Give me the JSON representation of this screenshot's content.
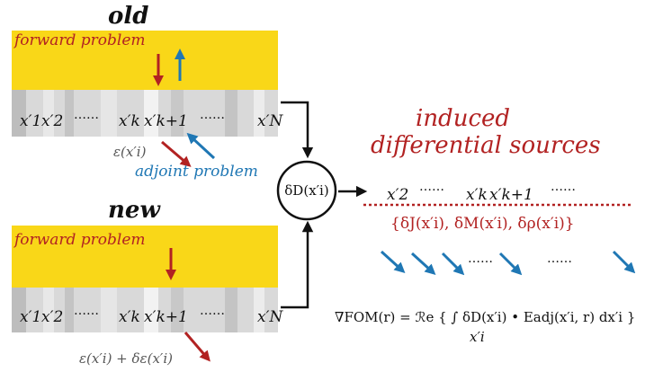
{
  "old_panel": {
    "title": "old",
    "forward_label": "forward  problem",
    "coords": [
      "x′1",
      "x′2",
      "x′k",
      "x′k+1",
      "x′N"
    ],
    "ellipsis_1": "……",
    "ellipsis_2": "……",
    "epsilon_label": "ε(x′i)",
    "adjoint_label": "adjoint problem"
  },
  "new_panel": {
    "title": "new",
    "forward_label": "forward  problem",
    "coords": [
      "x′1",
      "x′2",
      "x′k",
      "x′k+1",
      "x′N"
    ],
    "ellipsis_1": "……",
    "ellipsis_2": "……",
    "epsilon_label": "ε(x′i) + δε(x′i)"
  },
  "delta_node": {
    "label": "δD(x′i)"
  },
  "induced": {
    "line1": "induced",
    "line2": "differential sources",
    "coords": [
      "x′2",
      "x′k",
      "x′k+1"
    ],
    "ellipsis_1": "……",
    "ellipsis_2": "……",
    "sources_label": "{δJ(x′i), δM(x′i), δρ(x′i)}",
    "arrow_ellipsis_1": "……",
    "arrow_ellipsis_2": "……"
  },
  "formula": {
    "text": "∇FOM(r) = ℛe { ∫ δD(x′i) • Eadj(x′i, r) dx′i }",
    "integral_subscript": "x′i"
  },
  "colors": {
    "yellow": "#f9d718",
    "red": "#b22222",
    "blue": "#1f77b4",
    "gray_light": "#d9d9d9",
    "gray_dark": "#bdbdbd"
  }
}
